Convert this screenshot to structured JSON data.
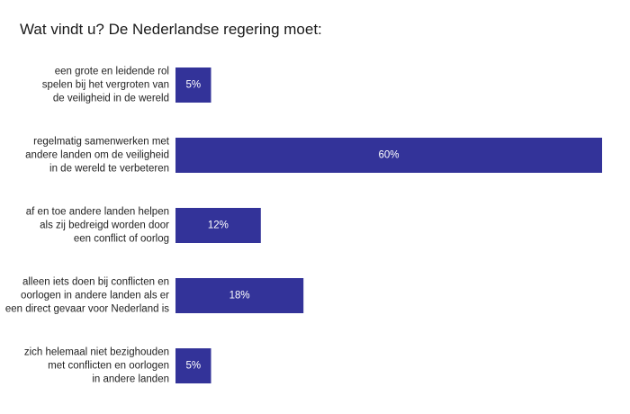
{
  "chart_data": {
    "type": "bar",
    "orientation": "horizontal",
    "title": "Wat vindt u? De Nederlandse regering moet:",
    "categories": [
      [
        "een grote en leidende rol",
        "spelen bij het vergroten van",
        "de veiligheid in de wereld"
      ],
      [
        "regelmatig samenwerken met",
        "andere landen om de veiligheid",
        "in de wereld te verbeteren"
      ],
      [
        "af en toe andere landen helpen",
        "als zij bedreigd worden door",
        "een conflict of oorlog"
      ],
      [
        "alleen iets doen bij conflicten en",
        "oorlogen in andere landen als er",
        "een direct gevaar voor Nederland is"
      ],
      [
        "zich helemaal niet bezighouden",
        "met conflicten en oorlogen",
        "in andere landen"
      ]
    ],
    "values": [
      5,
      60,
      12,
      18,
      5
    ],
    "value_labels": [
      "5%",
      "60%",
      "12%",
      "18%",
      "5%"
    ],
    "xlim": [
      0,
      60
    ],
    "bar_color": "#333399",
    "grid": false,
    "legend": "none"
  }
}
